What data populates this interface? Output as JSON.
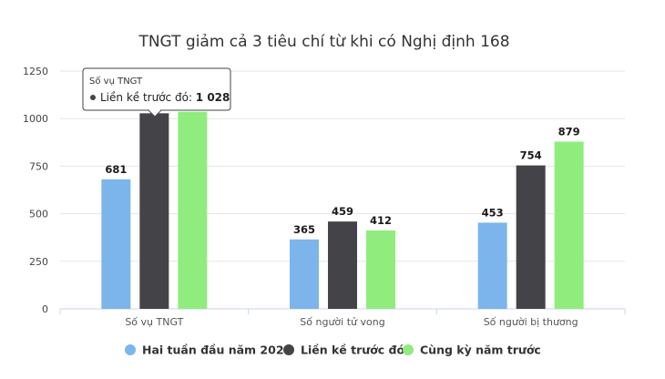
{
  "chart_data": {
    "type": "bar",
    "title": "TNGT giảm cả 3 tiêu chí từ khi có Nghị định 168",
    "categories": [
      "Số vụ TNGT",
      "Số người tử vong",
      "Số người bị thương"
    ],
    "series": [
      {
        "name": "Hai tuần đầu năm 2025",
        "color": "#7cb5ec",
        "values": [
          681,
          365,
          453
        ],
        "labels": [
          "681",
          "365",
          "453"
        ]
      },
      {
        "name": "Liền kề trước đó",
        "color": "#434348",
        "values": [
          1028,
          459,
          754
        ],
        "labels": [
          "1 028",
          "459",
          "754"
        ]
      },
      {
        "name": "Cùng kỳ năm trước",
        "color": "#90ed7d",
        "values": [
          1036,
          412,
          879
        ],
        "labels": [
          "1 036",
          "412",
          "879"
        ]
      }
    ],
    "ylim": [
      0,
      1250
    ],
    "yticks": [
      "0",
      "250",
      "500",
      "750",
      "1000",
      "1250"
    ],
    "grid": true,
    "legend": "bottom",
    "tooltip": {
      "title": "Số vụ TNGT",
      "series": "Liền kề trước đó",
      "value": "1 028"
    }
  }
}
